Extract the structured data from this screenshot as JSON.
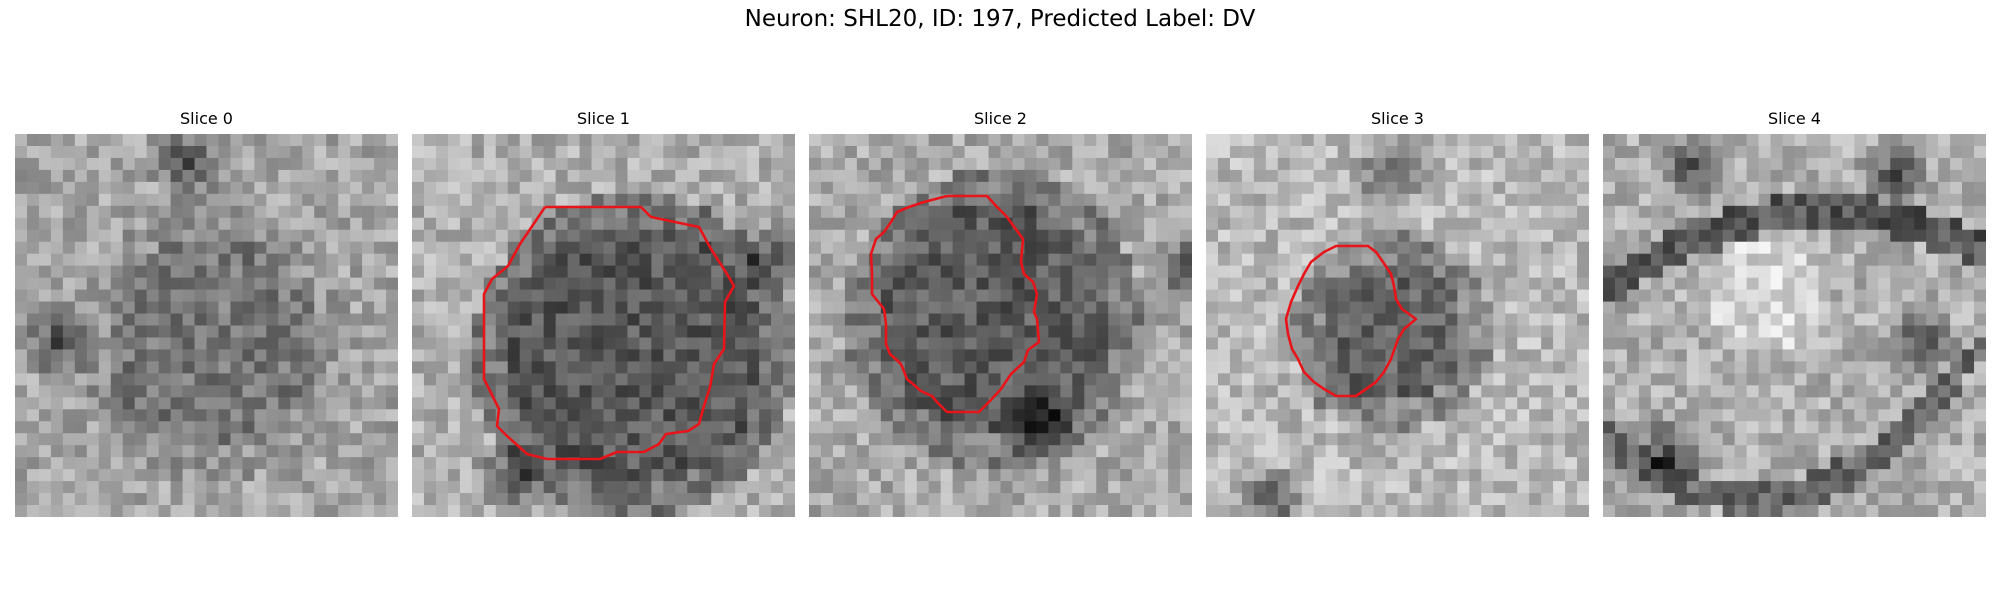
{
  "figure": {
    "title": "Neuron: SHL20, ID: 197, Predicted Label: DV"
  },
  "colors": {
    "contour": "#e8141a",
    "background": "#ffffff"
  },
  "slices": [
    {
      "title": "Slice 0",
      "has_contour": false
    },
    {
      "title": "Slice 1",
      "has_contour": true
    },
    {
      "title": "Slice 2",
      "has_contour": true
    },
    {
      "title": "Slice 3",
      "has_contour": true
    },
    {
      "title": "Slice 4",
      "has_contour": false
    }
  ]
}
